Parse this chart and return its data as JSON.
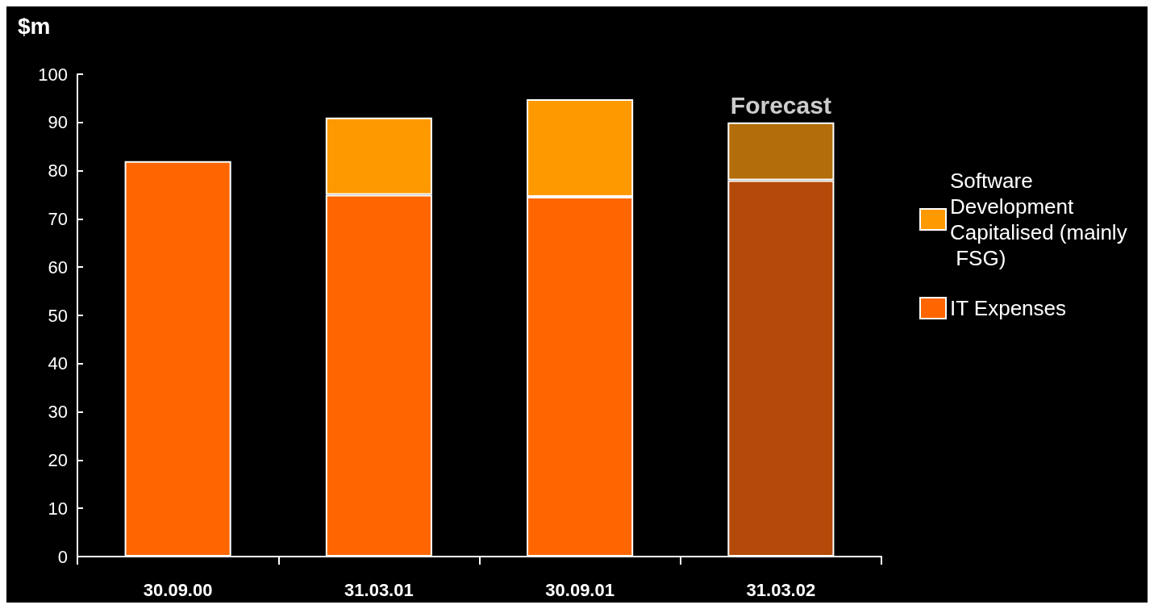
{
  "chart_data": {
    "type": "bar",
    "stacked": true,
    "ylabel": "$m",
    "categories": [
      "30.09.00",
      "31.03.01",
      "30.09.01",
      "31.03.02"
    ],
    "series": [
      {
        "name": "IT Expenses",
        "color": "#ff6600",
        "colors": [
          "#ff6600",
          "#ff6600",
          "#ff6600",
          "#b34a0a"
        ],
        "values": [
          82,
          75,
          74.6,
          78
        ]
      },
      {
        "name": "Software Development Capitalised (mainly FSG)",
        "color": "#ff9900",
        "colors": [
          "#ff9900",
          "#ff9900",
          "#ff9900",
          "#b36d0a"
        ],
        "values": [
          null,
          16,
          20.2,
          12
        ]
      }
    ],
    "ylim": [
      0,
      100
    ],
    "yticks": [
      0,
      10,
      20,
      30,
      40,
      50,
      60,
      70,
      80,
      90,
      100
    ],
    "grid": false,
    "legend": "right",
    "annotations": [
      {
        "text": "Forecast",
        "x": "31.03.02",
        "y": 90
      }
    ]
  }
}
